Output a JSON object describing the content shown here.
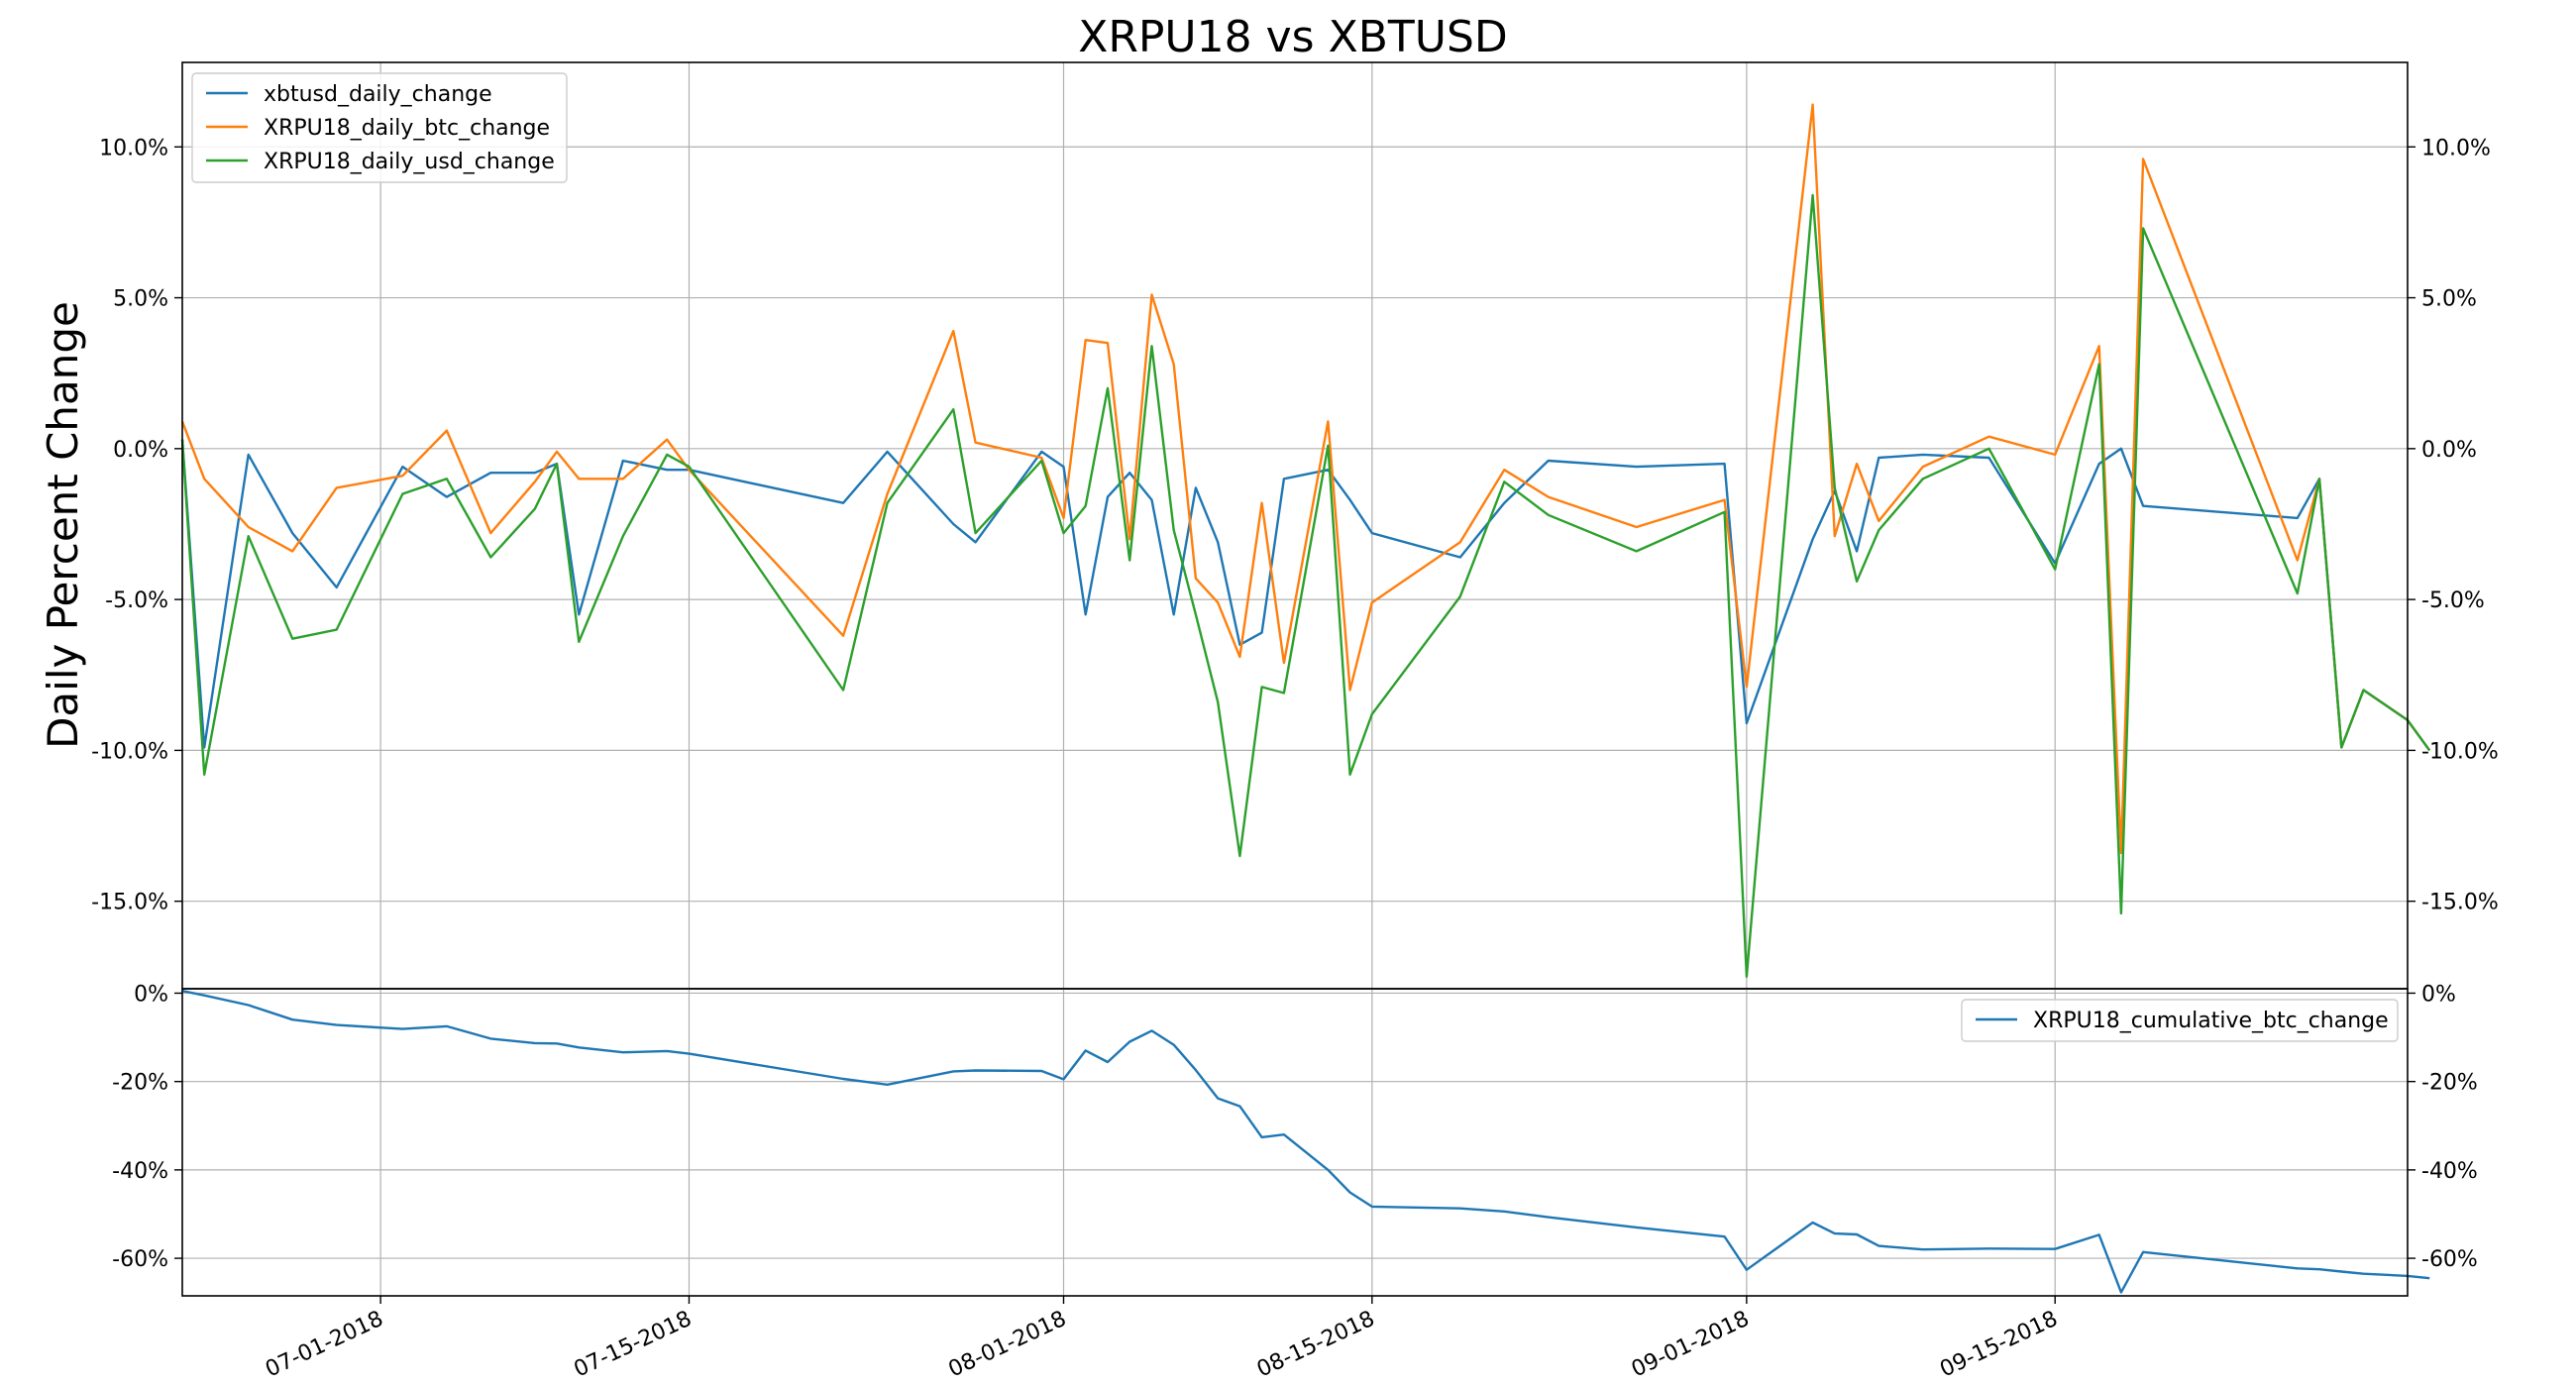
{
  "chart_data": {
    "title": "XRPU18 vs XBTUSD",
    "x_dates": [
      "06-22-2018",
      "06-23-2018",
      "06-25-2018",
      "06-27-2018",
      "06-29-2018",
      "07-02-2018",
      "07-04-2018",
      "07-06-2018",
      "07-08-2018",
      "07-09-2018",
      "07-10-2018",
      "07-12-2018",
      "07-14-2018",
      "07-15-2018",
      "07-22-2018",
      "07-24-2018",
      "07-27-2018",
      "07-28-2018",
      "07-31-2018",
      "08-01-2018",
      "08-02-2018",
      "08-03-2018",
      "08-04-2018",
      "08-05-2018",
      "08-06-2018",
      "08-07-2018",
      "08-08-2018",
      "08-09-2018",
      "08-10-2018",
      "08-11-2018",
      "08-13-2018",
      "08-14-2018",
      "08-15-2018",
      "08-19-2018",
      "08-21-2018",
      "08-23-2018",
      "08-27-2018",
      "08-31-2018",
      "09-01-2018",
      "09-04-2018",
      "09-05-2018",
      "09-06-2018",
      "09-07-2018",
      "09-09-2018",
      "09-12-2018",
      "09-15-2018",
      "09-17-2018",
      "09-18-2018",
      "09-19-2018",
      "09-26-2018",
      "09-27-2018",
      "09-28-2018",
      "09-29-2018",
      "10-01-2018",
      "10-02-2018"
    ],
    "top": {
      "ylabel": "Daily Percent Change",
      "ylim": [
        -17.9,
        12.8
      ],
      "yticks": [
        -15,
        -10,
        -5,
        0,
        5,
        10
      ],
      "ytick_labels": [
        "-15.0%",
        "-10.0%",
        "-5.0%",
        "0.0%",
        "5.0%",
        "10.0%"
      ],
      "legend_position": "upper-left",
      "series": [
        {
          "name": "xbtusd_daily_change",
          "color": "#1f77b4",
          "values": [
            0.3,
            -9.9,
            -0.2,
            -2.8,
            -4.6,
            -0.6,
            -1.6,
            -0.8,
            -0.8,
            -0.5,
            -5.5,
            -0.4,
            -0.7,
            -0.7,
            -1.8,
            -0.1,
            -2.5,
            -3.1,
            -0.1,
            -0.6,
            -5.5,
            -1.6,
            -0.8,
            -1.7,
            -5.5,
            -1.3,
            -3.1,
            -6.5,
            -6.1,
            -1.0,
            -0.7,
            -1.7,
            -2.8,
            -3.6,
            -1.8,
            -0.4,
            -0.6,
            -0.5,
            -9.1,
            -3.0,
            -1.4,
            -3.4,
            -0.3,
            -0.2,
            -0.3,
            -3.8,
            -0.5,
            0.0,
            -1.9,
            -2.3,
            -1.0,
            -9.9,
            -8.0,
            -9.0,
            -10.0
          ]
        },
        {
          "name": "XRPU18_daily_btc_change",
          "color": "#ff7f0e",
          "values": [
            0.9,
            -1.0,
            -2.6,
            -3.4,
            -1.3,
            -0.9,
            0.6,
            -2.8,
            -1.1,
            -0.1,
            -1.0,
            -1.0,
            0.3,
            -0.7,
            -6.2,
            -1.5,
            3.9,
            0.2,
            -0.3,
            -2.3,
            3.6,
            3.5,
            -3.0,
            5.1,
            2.8,
            -4.3,
            -5.1,
            -6.9,
            -1.8,
            -7.1,
            0.9,
            -8.0,
            -5.1,
            -3.1,
            -0.7,
            -1.6,
            -2.6,
            -1.7,
            -7.9,
            11.4,
            -2.9,
            -0.5,
            -2.4,
            -0.6,
            0.4,
            -0.2,
            3.4,
            -13.4,
            9.6,
            -3.7,
            -1.0,
            -9.9,
            -8.0,
            -9.0,
            -10.0
          ]
        },
        {
          "name": "XRPU18_daily_usd_change",
          "color": "#2ca02c",
          "values": [
            0.3,
            -10.8,
            -2.9,
            -6.3,
            -6.0,
            -1.5,
            -1.0,
            -3.6,
            -2.0,
            -0.5,
            -6.4,
            -2.9,
            -0.2,
            -0.6,
            -8.0,
            -1.8,
            1.3,
            -2.8,
            -0.4,
            -2.8,
            -1.9,
            2.0,
            -3.7,
            3.4,
            -2.7,
            -5.5,
            -8.4,
            -13.5,
            -7.9,
            -8.1,
            0.1,
            -10.8,
            -8.8,
            -4.9,
            -1.1,
            -2.2,
            -3.4,
            -2.1,
            -17.5,
            8.4,
            -1.3,
            -4.4,
            -2.7,
            -1.0,
            0.0,
            -4.0,
            2.8,
            -15.4,
            7.3,
            -4.8,
            -1.0,
            -9.9,
            -8.0,
            -9.0,
            -10.0
          ]
        }
      ]
    },
    "bottom": {
      "ylim": [
        -68.5,
        1.0
      ],
      "yticks": [
        -60,
        -40,
        -20,
        0
      ],
      "ytick_labels": [
        "-60%",
        "-40%",
        "-20%",
        "0%"
      ],
      "legend_position": "upper-right",
      "series": [
        {
          "name": "XRPU18_cumulative_btc_change",
          "color": "#1f77b4",
          "values": [
            0.5,
            -0.5,
            -2.7,
            -6.0,
            -7.2,
            -8.1,
            -7.5,
            -10.3,
            -11.3,
            -11.4,
            -12.3,
            -13.4,
            -13.1,
            -13.7,
            -19.4,
            -20.7,
            -17.7,
            -17.5,
            -17.6,
            -19.5,
            -13.0,
            -15.6,
            -11.0,
            -8.5,
            -11.7,
            -17.4,
            -23.8,
            -25.6,
            -32.6,
            -32.0,
            -40.0,
            -45.1,
            -48.3,
            -48.7,
            -49.4,
            -50.7,
            -53.0,
            -55.1,
            -62.6,
            -51.9,
            -54.4,
            -54.6,
            -57.2,
            -58.0,
            -57.8,
            -57.9,
            -54.7,
            -67.7,
            -58.6,
            -62.3,
            -62.5,
            -63.0,
            -63.5,
            -64.0,
            -64.5
          ]
        }
      ]
    },
    "xticks": [
      "07-01-2018",
      "07-15-2018",
      "08-01-2018",
      "08-15-2018",
      "09-01-2018",
      "09-15-2018"
    ],
    "xlim": [
      "06-22-2018",
      "10-01-2018"
    ],
    "grid": true
  }
}
